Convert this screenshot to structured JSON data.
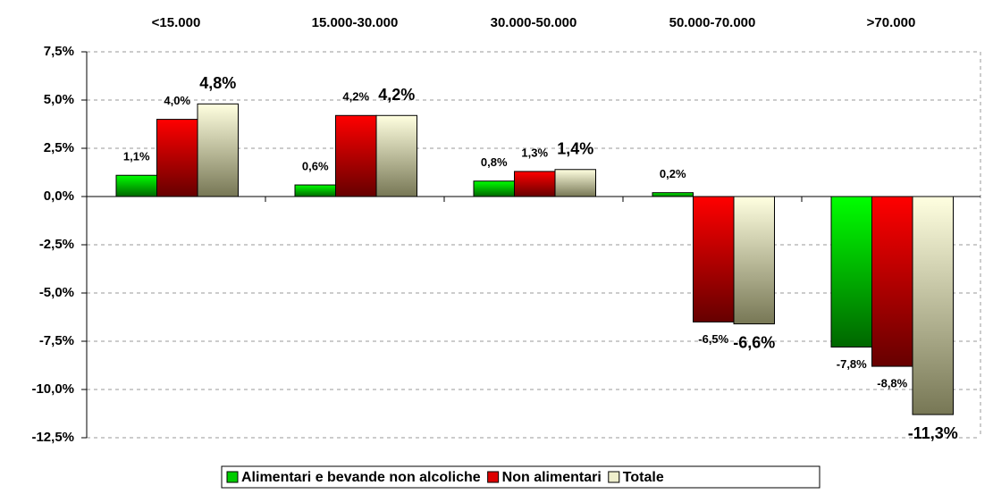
{
  "chart_data": {
    "type": "bar",
    "categories": [
      "<15.000",
      "15.000-30.000",
      "30.000-50.000",
      "50.000-70.000",
      ">70.000"
    ],
    "series": [
      {
        "name": "Alimentari  e bevande non alcoliche",
        "color": "#00cc00",
        "values": [
          1.1,
          0.6,
          0.8,
          0.2,
          -7.8
        ],
        "value_labels": [
          "1,1%",
          "0,6%",
          "0,8%",
          "0,2%",
          "-7,8%"
        ]
      },
      {
        "name": "Non alimentari",
        "color": "#dd0000",
        "values": [
          4.0,
          4.2,
          1.3,
          -6.5,
          -8.8
        ],
        "value_labels": [
          "4,0%",
          "4,2%",
          "1,3%",
          "-6,5%",
          "-8,8%"
        ]
      },
      {
        "name": "Totale",
        "color": "#eeeecc",
        "values": [
          4.8,
          4.2,
          1.4,
          -6.6,
          -11.3
        ],
        "value_labels": [
          "4,8%",
          "4,2%",
          "1,4%",
          "-6,6%",
          "-11,3%"
        ]
      }
    ],
    "ylim": [
      -12.5,
      7.5
    ],
    "yticks": [
      {
        "value": 7.5,
        "label": "7,5%"
      },
      {
        "value": 5,
        "label": "5,0%"
      },
      {
        "value": 2.5,
        "label": "2,5%"
      },
      {
        "value": 0,
        "label": "0,0%"
      },
      {
        "value": -2.5,
        "label": "-2,5%"
      },
      {
        "value": -5,
        "label": "-5,0%"
      },
      {
        "value": -7.5,
        "label": "-7,5%"
      },
      {
        "value": -10,
        "label": "-10,0%"
      },
      {
        "value": -12.5,
        "label": "-12,5%"
      }
    ],
    "grid": true
  }
}
